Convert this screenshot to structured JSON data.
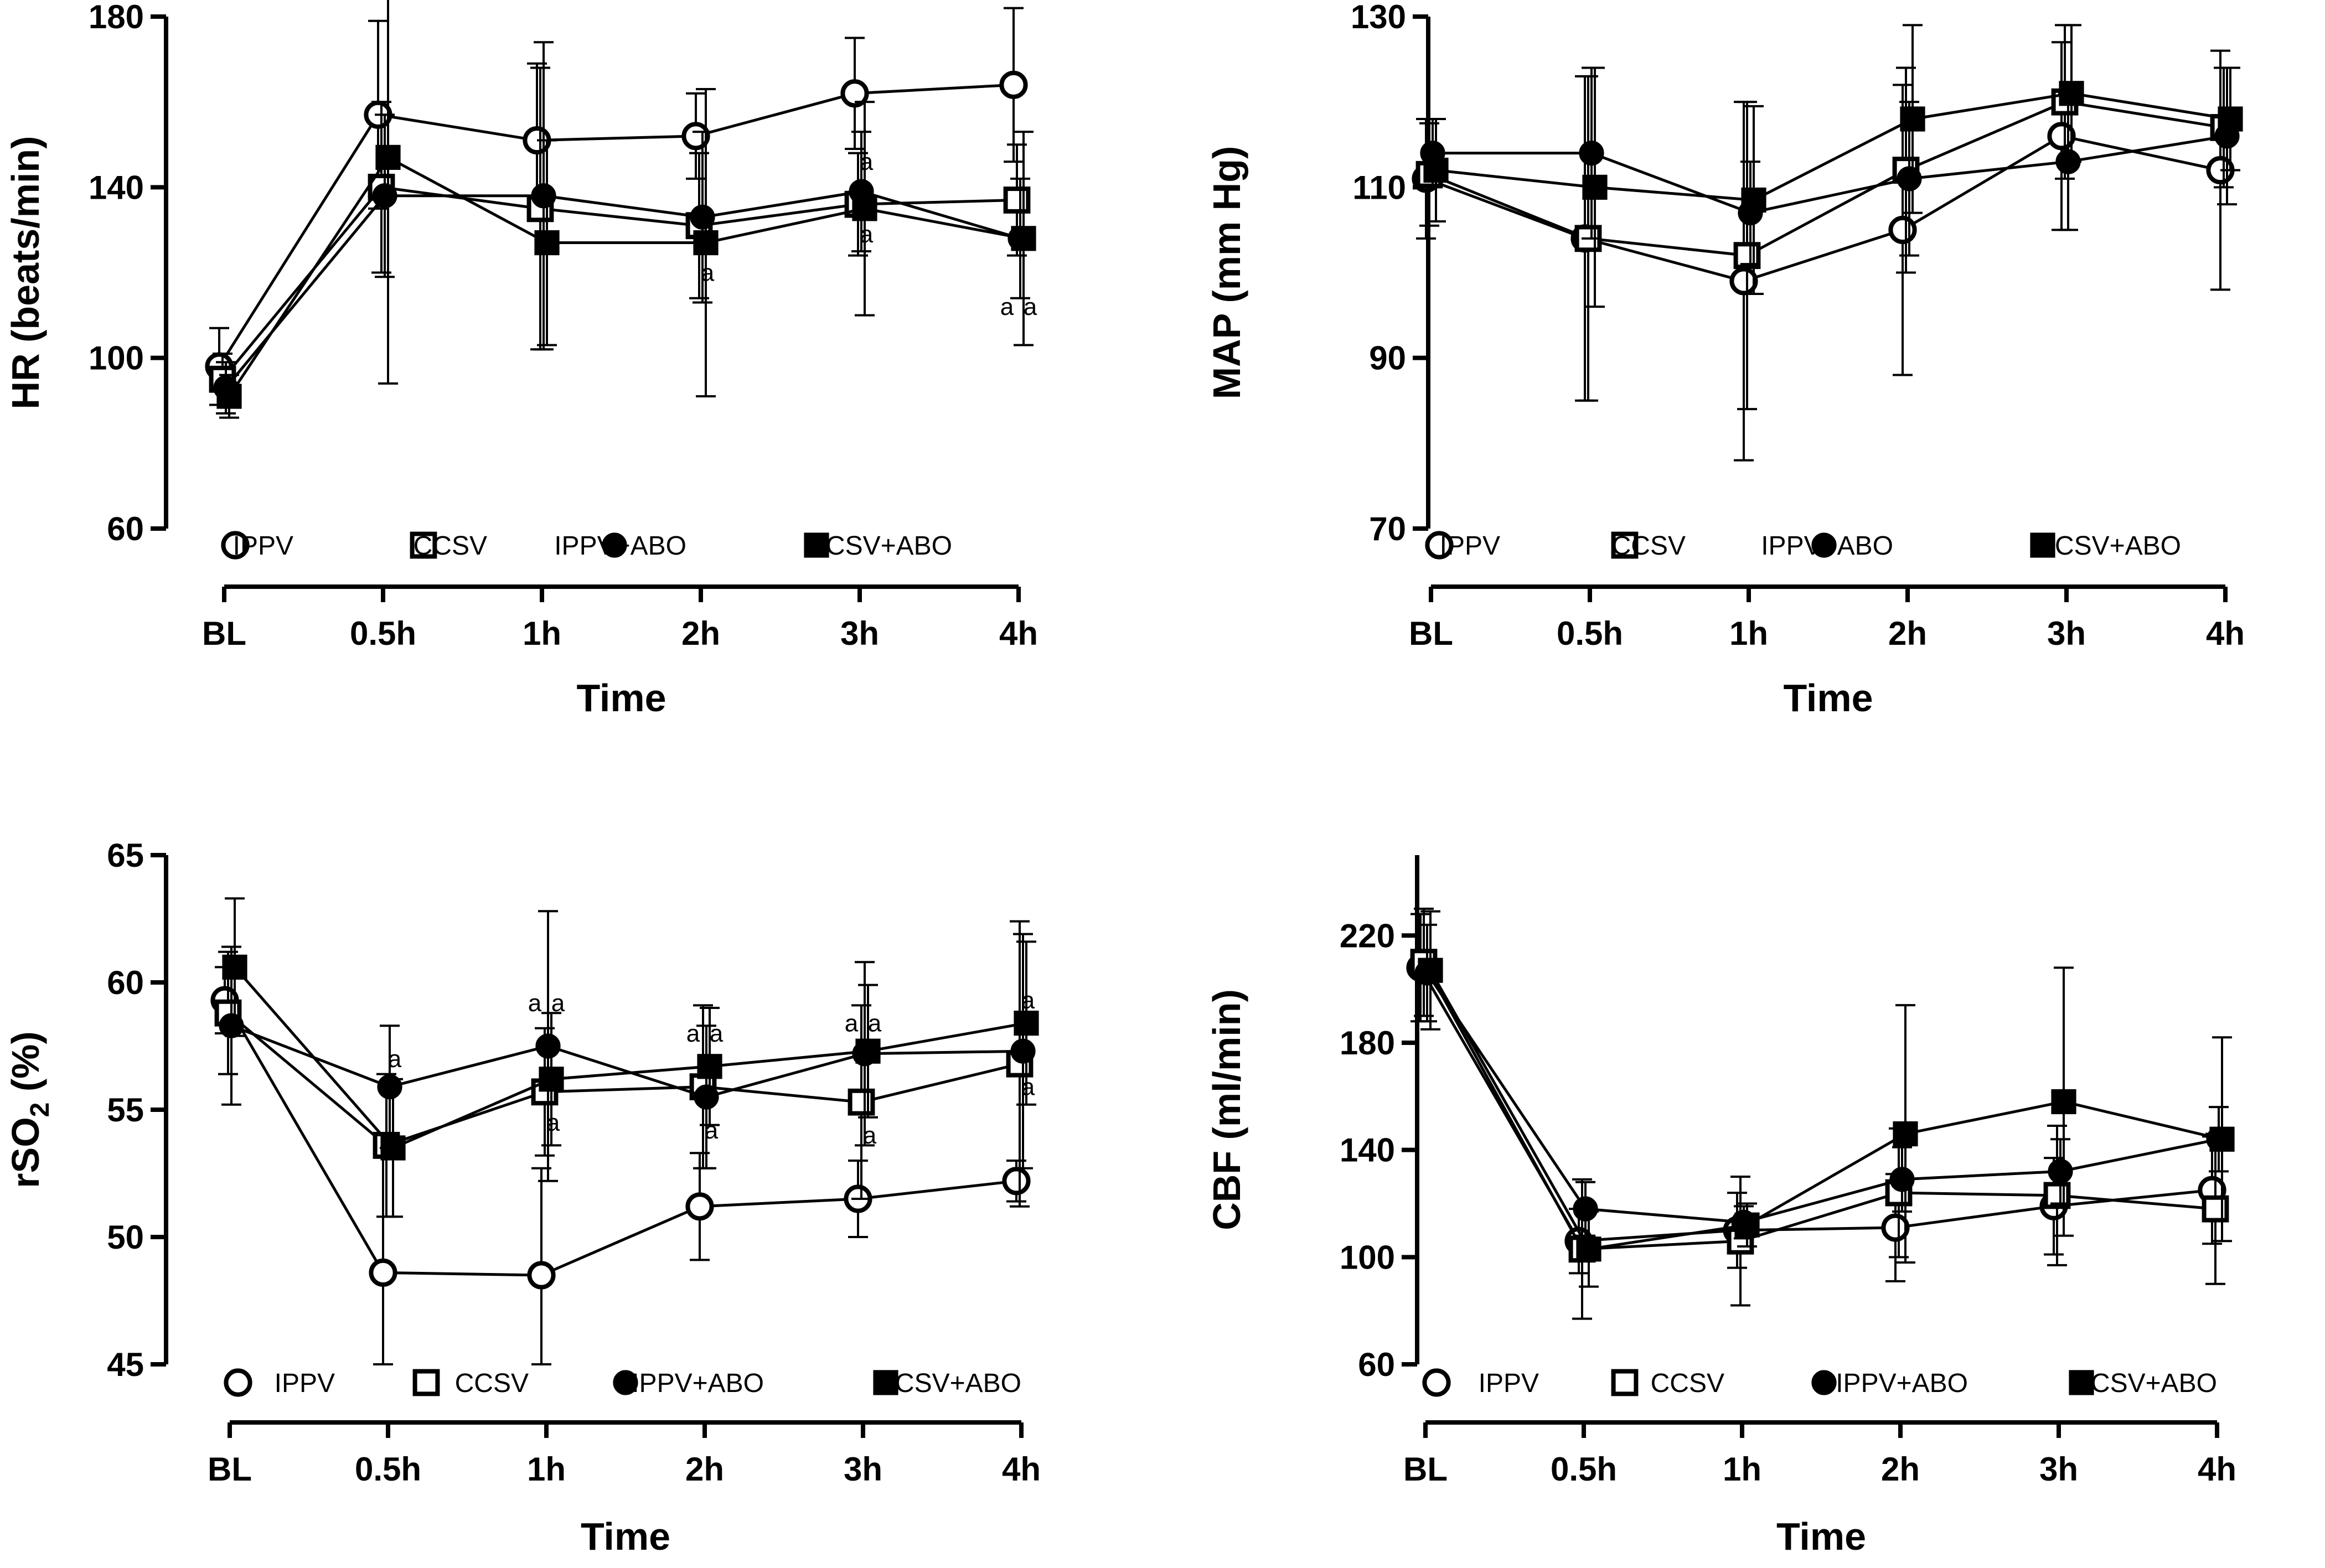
{
  "chart_data": [
    {
      "type": "line",
      "ylabel": "HR (beats/min)",
      "xlabel": "Time",
      "categories": [
        "BL",
        "0.5h",
        "1h",
        "2h",
        "3h",
        "4h"
      ],
      "ylim": [
        60,
        180
      ],
      "yticks": [
        60,
        100,
        140,
        180
      ],
      "series": [
        {
          "name": "IPPV",
          "marker": "open-circle",
          "values": [
            98,
            157,
            151,
            152,
            162,
            164
          ],
          "errors": [
            9,
            22,
            18,
            10,
            13,
            18
          ]
        },
        {
          "name": "CCSV",
          "marker": "open-square",
          "values": [
            95,
            140,
            135,
            131,
            136,
            137
          ],
          "errors": [
            6,
            20,
            33,
            17,
            12,
            13
          ]
        },
        {
          "name": "IPPV+ABO",
          "marker": "filled-circle",
          "values": [
            93,
            138,
            138,
            133,
            139,
            128
          ],
          "errors": [
            6,
            19,
            36,
            20,
            14,
            14
          ]
        },
        {
          "name": "CCSV+ABO",
          "marker": "filled-square",
          "values": [
            91,
            147,
            127,
            127,
            135,
            128
          ],
          "errors": [
            5,
            53,
            24,
            36,
            25,
            25
          ]
        }
      ],
      "annotations": [
        {
          "text": "a",
          "x": "3h",
          "y": 146
        },
        {
          "text": "a",
          "x": "3h",
          "y": 129
        },
        {
          "text": "a",
          "x": "2h",
          "y": 120
        },
        {
          "text": "a",
          "x": "4h",
          "y": 112
        },
        {
          "text": "a",
          "x": "4h",
          "y": 112
        }
      ]
    },
    {
      "type": "line",
      "ylabel": "MAP (mm Hg)",
      "xlabel": "Time",
      "categories": [
        "BL",
        "0.5h",
        "1h",
        "2h",
        "3h",
        "4h"
      ],
      "ylim": [
        70,
        130
      ],
      "yticks": [
        70,
        90,
        110,
        130
      ],
      "series": [
        {
          "name": "IPPV",
          "marker": "open-circle",
          "values": [
            111,
            104,
            99,
            105,
            116,
            112
          ],
          "errors": [
            7,
            19,
            21,
            17,
            11,
            14
          ]
        },
        {
          "name": "CCSV",
          "marker": "open-square",
          "values": [
            111.5,
            104,
            102,
            112,
            120,
            117
          ],
          "errors": [
            6,
            19,
            18,
            12,
            9,
            7
          ]
        },
        {
          "name": "IPPV+ABO",
          "marker": "filled-circle",
          "values": [
            114,
            114,
            107,
            111,
            113,
            116
          ],
          "errors": [
            4,
            10,
            6,
            9,
            8,
            8
          ]
        },
        {
          "name": "CCSV+ABO",
          "marker": "filled-square",
          "values": [
            112,
            110,
            108.5,
            118,
            121,
            118
          ],
          "errors": [
            6,
            14,
            11,
            11,
            8,
            6
          ]
        }
      ],
      "annotations": []
    },
    {
      "type": "line",
      "ylabel": "rSO2 (%)",
      "xlabel": "Time",
      "categories": [
        "BL",
        "0.5h",
        "1h",
        "2h",
        "3h",
        "4h"
      ],
      "ylim": [
        45,
        65
      ],
      "yticks": [
        45,
        50,
        55,
        60,
        65
      ],
      "series": [
        {
          "name": "IPPV",
          "marker": "open-circle",
          "values": [
            59.3,
            48.6,
            48.5,
            51.2,
            51.5,
            52.2
          ],
          "errors": [
            1.3,
            4.8,
            4.2,
            2.1,
            1.5,
            0.8
          ]
        },
        {
          "name": "CCSV",
          "marker": "open-square",
          "values": [
            58.8,
            53.6,
            55.7,
            55.9,
            55.3,
            56.8
          ],
          "errors": [
            2.4,
            2.8,
            2.5,
            3.2,
            3.8,
            5.6
          ]
        },
        {
          "name": "IPPV+ABO",
          "marker": "filled-circle",
          "values": [
            58.3,
            55.9,
            57.5,
            55.5,
            57.2,
            57.3
          ],
          "errors": [
            3.1,
            2.4,
            5.3,
            2.8,
            3.6,
            4.6
          ]
        },
        {
          "name": "CCSV+ABO",
          "marker": "filled-square",
          "values": [
            60.6,
            53.5,
            56.2,
            56.7,
            57.3,
            58.4
          ],
          "errors": [
            2.7,
            2.7,
            2.6,
            2.3,
            2.6,
            3.2
          ]
        }
      ],
      "annotations": [
        {
          "text": "a",
          "x": "0.5h",
          "y": 57.0
        },
        {
          "text": "a",
          "x": "1h",
          "y": 59.2
        },
        {
          "text": "a",
          "x": "1h",
          "y": 59.2
        },
        {
          "text": "a",
          "x": "1h",
          "y": 54.5
        },
        {
          "text": "a",
          "x": "2h",
          "y": 58.0
        },
        {
          "text": "a",
          "x": "2h",
          "y": 58.0
        },
        {
          "text": "a",
          "x": "2h",
          "y": 54.2
        },
        {
          "text": "a",
          "x": "3h",
          "y": 58.4
        },
        {
          "text": "a",
          "x": "3h",
          "y": 58.4
        },
        {
          "text": "a",
          "x": "3h",
          "y": 54.0
        },
        {
          "text": "a",
          "x": "4h",
          "y": 59.3
        },
        {
          "text": "a",
          "x": "4h",
          "y": 55.9
        }
      ]
    },
    {
      "type": "line",
      "ylabel": "CBF (ml/min)",
      "xlabel": "Time",
      "categories": [
        "BL",
        "0.5h",
        "1h",
        "2h",
        "3h",
        "4h"
      ],
      "ylim": [
        60,
        250
      ],
      "yticks": [
        60,
        100,
        140,
        180,
        220
      ],
      "series": [
        {
          "name": "IPPV",
          "marker": "open-circle",
          "values": [
            208,
            106,
            110,
            111,
            119,
            125
          ],
          "errors": [
            20,
            12,
            14,
            20,
            18,
            20
          ]
        },
        {
          "name": "CCSV",
          "marker": "open-square",
          "values": [
            210,
            103,
            106,
            124,
            123,
            118
          ],
          "errors": [
            20,
            26,
            24,
            24,
            26,
            28
          ]
        },
        {
          "name": "IPPV+ABO",
          "marker": "filled-circle",
          "values": [
            206,
            118,
            113,
            129,
            132,
            144
          ],
          "errors": [
            18,
            10,
            6,
            12,
            12,
            12
          ]
        },
        {
          "name": "CCSV+ABO",
          "marker": "filled-square",
          "values": [
            207,
            103,
            112,
            146,
            158,
            144
          ],
          "errors": [
            22,
            14,
            8,
            48,
            50,
            38
          ]
        }
      ],
      "annotations": []
    }
  ]
}
